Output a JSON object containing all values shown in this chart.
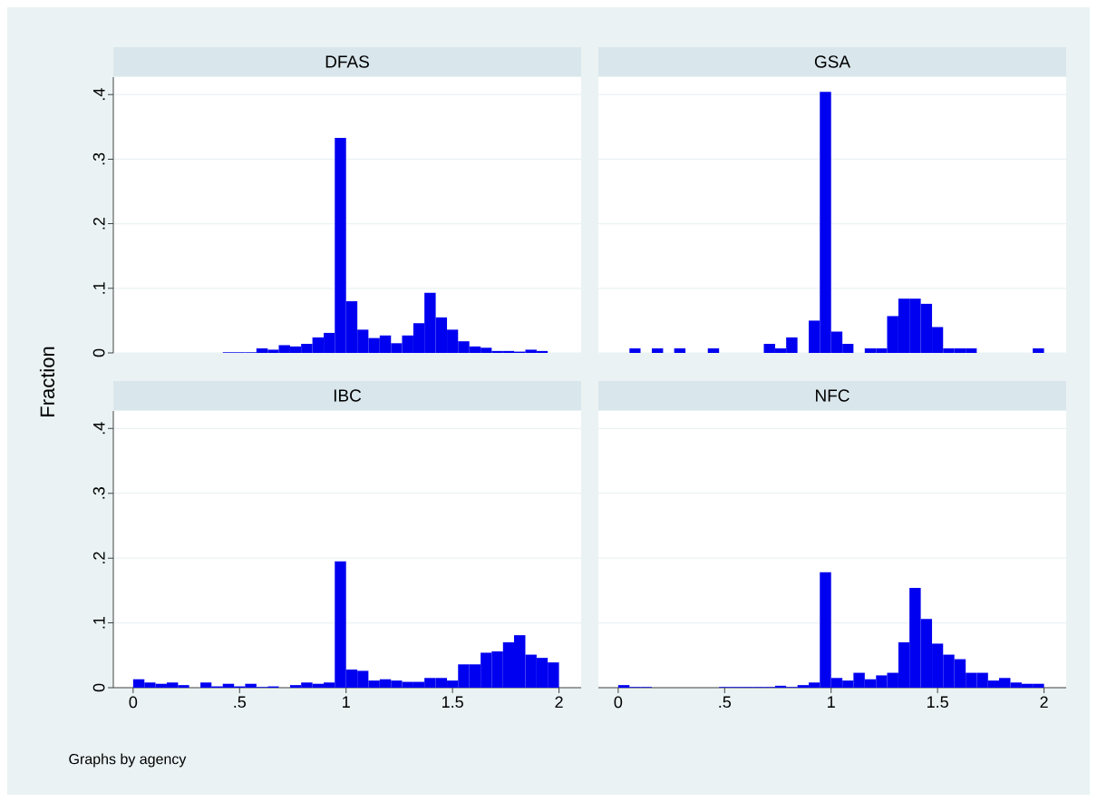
{
  "chart_data": [
    {
      "type": "histogram",
      "title": "DFAS",
      "ylabel": "Fraction",
      "color": "#0000f0",
      "grid": "y",
      "tick_labels": "y",
      "bins": [
        0,
        0.053,
        0.105,
        0.158,
        0.211,
        0.263,
        0.316,
        0.368,
        0.421,
        0.474,
        0.526,
        0.579,
        0.632,
        0.684,
        0.737,
        0.789,
        0.842,
        0.895,
        0.947,
        1,
        1.053,
        1.105,
        1.158,
        1.211,
        1.263,
        1.316,
        1.368,
        1.421,
        1.474,
        1.526,
        1.579,
        1.632,
        1.684,
        1.737,
        1.789,
        1.842,
        1.895,
        1.947,
        2
      ],
      "values": [
        0,
        0,
        0,
        0,
        0,
        0,
        0,
        0,
        0.001,
        0.001,
        0.001,
        0.007,
        0.005,
        0.012,
        0.01,
        0.014,
        0.024,
        0.031,
        0.333,
        0.08,
        0.036,
        0.023,
        0.027,
        0.015,
        0.027,
        0.046,
        0.093,
        0.055,
        0.036,
        0.018,
        0.01,
        0.008,
        0.003,
        0.003,
        0.002,
        0.005,
        0.003,
        0
      ],
      "xlim": [
        -0.093,
        2.104
      ],
      "ylim": [
        0,
        0.427
      ],
      "yticks": [
        0,
        {
          "value": 0.1,
          "label": ".1"
        },
        {
          "value": 0.2,
          "label": ".2"
        },
        {
          "value": 0.3,
          "label": ".3"
        },
        {
          "value": 0.4,
          "label": ".4"
        }
      ]
    },
    {
      "type": "histogram",
      "title": "GSA",
      "color": "#0000f0",
      "grid": "y",
      "tick_labels": false,
      "bins": [
        0,
        0.053,
        0.105,
        0.158,
        0.211,
        0.263,
        0.316,
        0.368,
        0.421,
        0.474,
        0.526,
        0.579,
        0.632,
        0.684,
        0.737,
        0.789,
        0.842,
        0.895,
        0.947,
        1,
        1.053,
        1.105,
        1.158,
        1.211,
        1.263,
        1.316,
        1.368,
        1.421,
        1.474,
        1.526,
        1.579,
        1.632,
        1.684,
        1.737,
        1.789,
        1.842,
        1.895,
        1.947,
        2
      ],
      "values": [
        0,
        0.007,
        0,
        0.007,
        0,
        0.007,
        0,
        0,
        0.007,
        0,
        0,
        0,
        0,
        0.014,
        0.007,
        0.024,
        0,
        0.05,
        0.404,
        0.033,
        0.014,
        0,
        0.007,
        0.007,
        0.057,
        0.084,
        0.084,
        0.076,
        0.04,
        0.007,
        0.007,
        0.007,
        0,
        0,
        0,
        0,
        0,
        0.007
      ],
      "xlim": [
        -0.093,
        2.104
      ],
      "ylim": [
        0,
        0.427
      ],
      "yticks": [
        {
          "value": 0,
          "label": null
        },
        {
          "value": 0.1,
          "label": null
        },
        {
          "value": 0.2,
          "label": null
        },
        {
          "value": 0.3,
          "label": null
        },
        {
          "value": 0.4,
          "label": null
        }
      ]
    },
    {
      "type": "histogram",
      "title": "IBC",
      "color": "#0000f0",
      "grid": "y",
      "annotations": [
        "Graphs by agency"
      ],
      "bins": [
        0,
        0.053,
        0.105,
        0.158,
        0.211,
        0.263,
        0.316,
        0.368,
        0.421,
        0.474,
        0.526,
        0.579,
        0.632,
        0.684,
        0.737,
        0.789,
        0.842,
        0.895,
        0.947,
        1,
        1.053,
        1.105,
        1.158,
        1.211,
        1.263,
        1.316,
        1.368,
        1.421,
        1.474,
        1.526,
        1.579,
        1.632,
        1.684,
        1.737,
        1.789,
        1.842,
        1.895,
        1.947,
        2
      ],
      "values": [
        0.013,
        0.008,
        0.006,
        0.008,
        0.004,
        0,
        0.008,
        0.002,
        0.006,
        0.002,
        0.006,
        0.001,
        0.002,
        0,
        0.004,
        0.008,
        0.006,
        0.008,
        0.195,
        0.028,
        0.026,
        0.011,
        0.013,
        0.011,
        0.009,
        0.009,
        0.015,
        0.015,
        0.011,
        0.036,
        0.036,
        0.054,
        0.056,
        0.07,
        0.081,
        0.051,
        0.046,
        0.039
      ],
      "xlim": [
        -0.093,
        2.104
      ],
      "ylim": [
        0,
        0.427
      ],
      "xticks": [
        0,
        {
          "value": 0.5,
          "label": ".5"
        },
        1,
        1.5,
        2
      ],
      "yticks": [
        0,
        {
          "value": 0.1,
          "label": ".1"
        },
        {
          "value": 0.2,
          "label": ".2"
        },
        {
          "value": 0.3,
          "label": ".3"
        },
        {
          "value": 0.4,
          "label": ".4"
        }
      ]
    },
    {
      "type": "histogram",
      "title": "NFC",
      "color": "#0000f0",
      "grid": "y",
      "tick_labels": "x",
      "bins": [
        0,
        0.053,
        0.105,
        0.158,
        0.211,
        0.263,
        0.316,
        0.368,
        0.421,
        0.474,
        0.526,
        0.579,
        0.632,
        0.684,
        0.737,
        0.789,
        0.842,
        0.895,
        0.947,
        1,
        1.053,
        1.105,
        1.158,
        1.211,
        1.263,
        1.316,
        1.368,
        1.421,
        1.474,
        1.526,
        1.579,
        1.632,
        1.684,
        1.737,
        1.789,
        1.842,
        1.895,
        1.947,
        2
      ],
      "values": [
        0.004,
        0.001,
        0.001,
        0,
        0,
        0,
        0,
        0,
        0,
        0.001,
        0.001,
        0.001,
        0.001,
        0.001,
        0.003,
        0.001,
        0.004,
        0.008,
        0.178,
        0.015,
        0.011,
        0.023,
        0.013,
        0.019,
        0.023,
        0.07,
        0.154,
        0.106,
        0.068,
        0.051,
        0.044,
        0.023,
        0.023,
        0.011,
        0.015,
        0.008,
        0.006,
        0.006
      ],
      "xlim": [
        -0.093,
        2.104
      ],
      "ylim": [
        0,
        0.427
      ],
      "xticks": [
        0,
        {
          "value": 0.5,
          "label": ".5"
        },
        1,
        1.5,
        2
      ],
      "yticks": [
        {
          "value": 0,
          "label": null
        },
        {
          "value": 0.1,
          "label": null
        },
        {
          "value": 0.2,
          "label": null
        },
        {
          "value": 0.3,
          "label": null
        },
        {
          "value": 0.4,
          "label": null
        }
      ]
    }
  ]
}
